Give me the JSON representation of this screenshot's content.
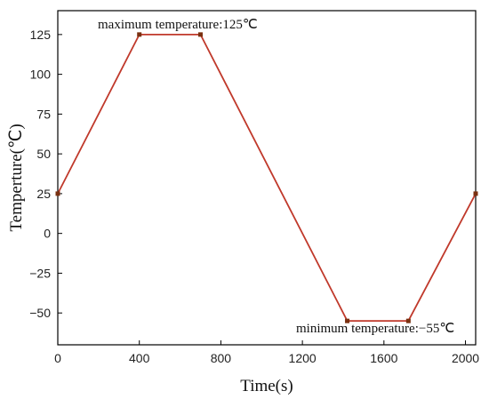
{
  "chart_data": {
    "type": "line",
    "xlabel": "Time(s)",
    "ylabel": "Temperture(℃)",
    "xlim": [
      0,
      2050
    ],
    "ylim": [
      -70,
      140
    ],
    "x_ticks": [
      0,
      400,
      800,
      1200,
      1600,
      2000
    ],
    "y_ticks": [
      -50,
      -25,
      0,
      25,
      50,
      75,
      100,
      125
    ],
    "x_tick_labels": [
      "0",
      "400",
      "800",
      "1200",
      "1600",
      "2000"
    ],
    "y_tick_labels": [
      "−50",
      "−25",
      "0",
      "25",
      "50",
      "75",
      "100",
      "125"
    ],
    "grid": false,
    "series": [
      {
        "color": "#c0392b",
        "points": [
          {
            "x": 0,
            "y": 25
          },
          {
            "x": 400,
            "y": 125
          },
          {
            "x": 700,
            "y": 125
          },
          {
            "x": 1420,
            "y": -55
          },
          {
            "x": 1720,
            "y": -55
          },
          {
            "x": 2050,
            "y": 25
          }
        ]
      }
    ],
    "annotations": [
      {
        "text": "maximum temperature:125℃"
      },
      {
        "text": "minimum temperature:−55℃"
      }
    ]
  }
}
